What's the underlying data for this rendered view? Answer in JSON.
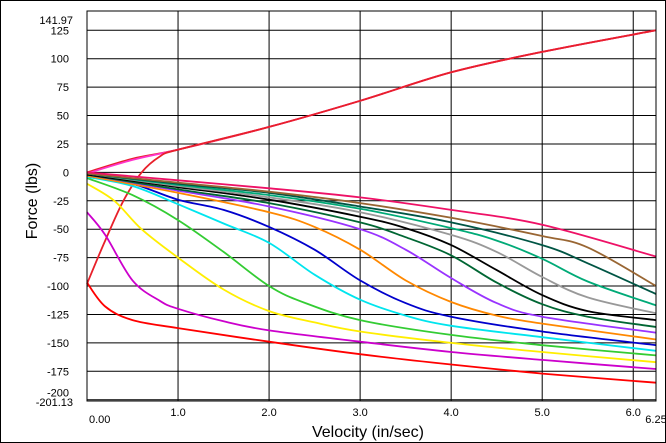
{
  "chart_data": {
    "type": "line",
    "xlabel": "Velocity (in/sec)",
    "ylabel": "Force (lbs)",
    "xlim": [
      0,
      6.25
    ],
    "ylim": [
      -201.13,
      141.97
    ],
    "x_ticks": [
      "0.00",
      "1.0",
      "2.0",
      "3.0",
      "4.0",
      "5.0",
      "6.0",
      "6.25"
    ],
    "y_ticks": [
      "141.97",
      "125",
      "100",
      "75",
      "50",
      "25",
      "0",
      "-25",
      "-50",
      "-75",
      "-100",
      "-125",
      "-150",
      "-175",
      "-200",
      "-201.13"
    ],
    "grid": true,
    "legend": "none",
    "series": [
      {
        "color": "#e8202a",
        "points": [
          [
            0,
            0
          ],
          [
            0.5,
            12
          ],
          [
            1.0,
            20
          ],
          [
            2.0,
            40
          ],
          [
            3.0,
            63
          ],
          [
            4.0,
            88
          ],
          [
            5.0,
            106
          ],
          [
            6.25,
            125
          ]
        ]
      },
      {
        "color": "#ff33cc",
        "points": [
          [
            0,
            -1
          ],
          [
            0.5,
            11
          ],
          [
            1.0,
            20
          ],
          [
            2.0,
            40
          ],
          [
            3.0,
            63
          ],
          [
            4.0,
            88
          ],
          [
            5.0,
            106
          ],
          [
            6.25,
            125
          ]
        ]
      },
      {
        "color": "#e8202a",
        "points": [
          [
            0,
            -98
          ],
          [
            0.2,
            -60
          ],
          [
            0.4,
            -25
          ],
          [
            0.6,
            0
          ],
          [
            0.8,
            14
          ],
          [
            1.0,
            20
          ],
          [
            2.0,
            40
          ],
          [
            3.0,
            63
          ],
          [
            4.0,
            88
          ],
          [
            5.0,
            106
          ],
          [
            6.25,
            125
          ]
        ]
      },
      {
        "color": "#ff0000",
        "points": [
          [
            0,
            -97
          ],
          [
            0.2,
            -118
          ],
          [
            0.5,
            -130
          ],
          [
            1.0,
            -137
          ],
          [
            2.0,
            -149
          ],
          [
            3.0,
            -160
          ],
          [
            4.0,
            -169
          ],
          [
            5.0,
            -177
          ],
          [
            6.25,
            -185
          ]
        ]
      },
      {
        "color": "#cc00cc",
        "points": [
          [
            0,
            -35
          ],
          [
            0.2,
            -55
          ],
          [
            0.5,
            -95
          ],
          [
            0.8,
            -113
          ],
          [
            1.0,
            -120
          ],
          [
            1.5,
            -131
          ],
          [
            2.0,
            -139
          ],
          [
            3.0,
            -149
          ],
          [
            4.0,
            -158
          ],
          [
            5.0,
            -165
          ],
          [
            6.25,
            -173
          ]
        ]
      },
      {
        "color": "#ffee00",
        "points": [
          [
            0,
            -10
          ],
          [
            0.3,
            -25
          ],
          [
            0.6,
            -50
          ],
          [
            1.0,
            -75
          ],
          [
            1.5,
            -103
          ],
          [
            2.0,
            -122
          ],
          [
            2.5,
            -132
          ],
          [
            3.0,
            -140
          ],
          [
            4.0,
            -150
          ],
          [
            5.0,
            -158
          ],
          [
            6.25,
            -167
          ]
        ]
      },
      {
        "color": "#33cc33",
        "points": [
          [
            0,
            -5
          ],
          [
            0.5,
            -20
          ],
          [
            1.0,
            -42
          ],
          [
            1.5,
            -70
          ],
          [
            2.0,
            -100
          ],
          [
            2.4,
            -115
          ],
          [
            3.0,
            -130
          ],
          [
            4.0,
            -143
          ],
          [
            5.0,
            -152
          ],
          [
            6.25,
            -161
          ]
        ]
      },
      {
        "color": "#00e5ee",
        "points": [
          [
            0,
            -4
          ],
          [
            0.5,
            -12
          ],
          [
            1.0,
            -28
          ],
          [
            1.5,
            -45
          ],
          [
            2.0,
            -62
          ],
          [
            2.5,
            -90
          ],
          [
            3.0,
            -112
          ],
          [
            3.5,
            -126
          ],
          [
            4.0,
            -135
          ],
          [
            5.0,
            -145
          ],
          [
            6.25,
            -157
          ]
        ]
      },
      {
        "color": "#0000cc",
        "points": [
          [
            0,
            -3
          ],
          [
            0.5,
            -10
          ],
          [
            1.0,
            -24
          ],
          [
            1.5,
            -33
          ],
          [
            2.0,
            -48
          ],
          [
            2.5,
            -68
          ],
          [
            3.0,
            -95
          ],
          [
            3.5,
            -115
          ],
          [
            4.0,
            -127
          ],
          [
            5.0,
            -140
          ],
          [
            6.25,
            -152
          ]
        ]
      },
      {
        "color": "#ff8800",
        "points": [
          [
            0,
            -3
          ],
          [
            1.0,
            -18
          ],
          [
            2.0,
            -35
          ],
          [
            2.5,
            -48
          ],
          [
            3.0,
            -68
          ],
          [
            3.5,
            -95
          ],
          [
            4.0,
            -114
          ],
          [
            4.5,
            -126
          ],
          [
            5.0,
            -133
          ],
          [
            6.25,
            -147
          ]
        ]
      },
      {
        "color": "#9933ff",
        "points": [
          [
            0,
            -2
          ],
          [
            1.0,
            -16
          ],
          [
            2.0,
            -30
          ],
          [
            3.0,
            -50
          ],
          [
            3.5,
            -68
          ],
          [
            4.0,
            -93
          ],
          [
            4.5,
            -115
          ],
          [
            5.0,
            -127
          ],
          [
            6.25,
            -141
          ]
        ]
      },
      {
        "color": "#006633",
        "points": [
          [
            0,
            -2
          ],
          [
            1.0,
            -15
          ],
          [
            2.0,
            -27
          ],
          [
            3.0,
            -44
          ],
          [
            3.5,
            -57
          ],
          [
            4.0,
            -73
          ],
          [
            4.5,
            -97
          ],
          [
            5.0,
            -116
          ],
          [
            5.5,
            -127
          ],
          [
            6.25,
            -136
          ]
        ]
      },
      {
        "color": "#000000",
        "points": [
          [
            0,
            -2
          ],
          [
            1.0,
            -13
          ],
          [
            2.0,
            -24
          ],
          [
            3.0,
            -39
          ],
          [
            3.5,
            -49
          ],
          [
            4.0,
            -64
          ],
          [
            4.5,
            -86
          ],
          [
            5.0,
            -108
          ],
          [
            5.5,
            -122
          ],
          [
            6.25,
            -130
          ]
        ]
      },
      {
        "color": "#999999",
        "points": [
          [
            0,
            -1
          ],
          [
            1.0,
            -12
          ],
          [
            2.0,
            -22
          ],
          [
            3.0,
            -35
          ],
          [
            4.0,
            -55
          ],
          [
            4.5,
            -70
          ],
          [
            5.0,
            -92
          ],
          [
            5.5,
            -110
          ],
          [
            6.25,
            -124
          ]
        ]
      },
      {
        "color": "#00aa77",
        "points": [
          [
            0,
            -1
          ],
          [
            1.0,
            -11
          ],
          [
            2.0,
            -20
          ],
          [
            3.0,
            -32
          ],
          [
            4.0,
            -49
          ],
          [
            4.5,
            -60
          ],
          [
            5.0,
            -76
          ],
          [
            5.5,
            -96
          ],
          [
            6.25,
            -117
          ]
        ]
      },
      {
        "color": "#005544",
        "points": [
          [
            0,
            -1
          ],
          [
            1.0,
            -10
          ],
          [
            2.0,
            -18
          ],
          [
            3.0,
            -30
          ],
          [
            4.0,
            -44
          ],
          [
            5.0,
            -64
          ],
          [
            5.5,
            -80
          ],
          [
            6.25,
            -107
          ]
        ]
      },
      {
        "color": "#996633",
        "points": [
          [
            0,
            -1
          ],
          [
            1.0,
            -9
          ],
          [
            2.0,
            -17
          ],
          [
            3.0,
            -27
          ],
          [
            4.0,
            -40
          ],
          [
            5.0,
            -56
          ],
          [
            5.5,
            -66
          ],
          [
            6.25,
            -100
          ]
        ]
      },
      {
        "color": "#ee1166",
        "points": [
          [
            0,
            0
          ],
          [
            1.0,
            -7
          ],
          [
            2.0,
            -14
          ],
          [
            3.0,
            -22
          ],
          [
            4.0,
            -33
          ],
          [
            5.0,
            -46
          ],
          [
            6.25,
            -74
          ]
        ]
      }
    ]
  }
}
